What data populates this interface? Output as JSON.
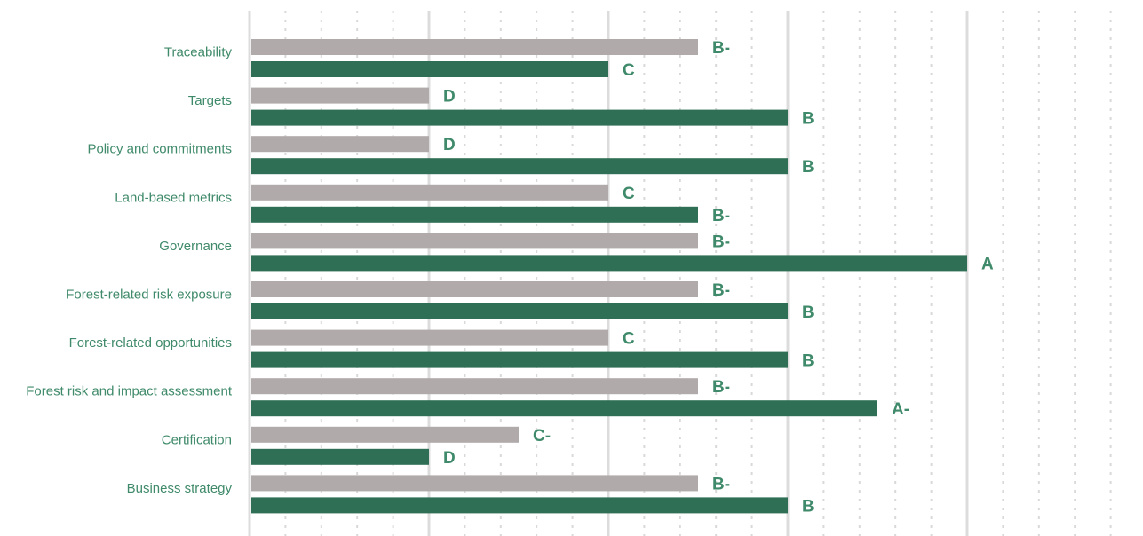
{
  "chart_data": {
    "type": "bar",
    "orientation": "horizontal",
    "categories": [
      "Traceability",
      "Targets",
      "Policy and commitments",
      "Land-based metrics",
      "Governance",
      "Forest-related risk exposure",
      "Forest-related opportunities",
      "Forest risk and impact assessment",
      "Certification",
      "Business strategy"
    ],
    "series": [
      {
        "color": "#b0aaaa",
        "values": [
          2.5,
          1,
          1,
          2,
          2.5,
          2.5,
          2,
          2.5,
          1.5,
          2.5
        ],
        "labels": [
          "B-",
          "D",
          "D",
          "C",
          "B-",
          "B-",
          "C",
          "B-",
          "C-",
          "B-"
        ]
      },
      {
        "color": "#2f6f55",
        "values": [
          2,
          3,
          3,
          2.5,
          4,
          3,
          3,
          3.5,
          1,
          3
        ],
        "labels": [
          "C",
          "B",
          "B",
          "B-",
          "A",
          "B",
          "B",
          "A-",
          "D",
          "B"
        ]
      }
    ],
    "xlim": [
      0,
      4.9
    ],
    "grid": {
      "major": true,
      "minor": true,
      "minor_style": "dotted"
    },
    "label_color": "#3f8a6a",
    "title": "",
    "xlabel": "",
    "ylabel": ""
  }
}
